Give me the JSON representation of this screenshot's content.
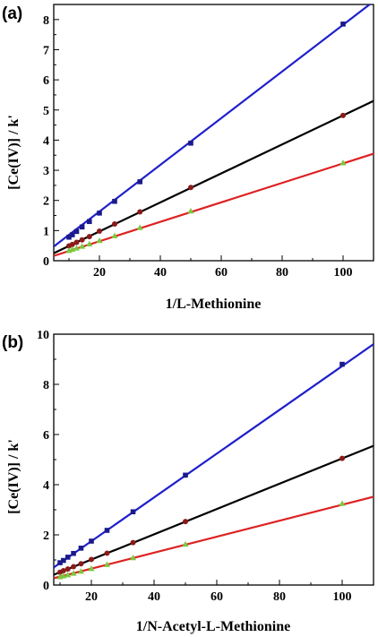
{
  "chart_data": [
    {
      "panel_label": "(a)",
      "type": "scatter",
      "xlabel": "1/L-Methionine",
      "ylabel": "[Ce(IV)] / k'",
      "xlim": [
        5,
        110
      ],
      "ylim": [
        0,
        8.5
      ],
      "xticks": [
        20,
        40,
        60,
        80,
        100
      ],
      "yticks": [
        0,
        1,
        2,
        3,
        4,
        5,
        6,
        7,
        8
      ],
      "grid": false,
      "series": [
        {
          "color": "#1f1fcc",
          "marker": "square",
          "marker_color": "#1a1a8c",
          "x": [
            100,
            50,
            33.3,
            25,
            20,
            16.7,
            14.3,
            12.5,
            11.1,
            10
          ],
          "y": [
            7.85,
            3.9,
            2.62,
            1.97,
            1.58,
            1.3,
            1.12,
            0.97,
            0.86,
            0.78
          ],
          "fit": [
            {
              "x": 5,
              "y": 0.47
            },
            {
              "x": 110,
              "y": 8.6
            }
          ]
        },
        {
          "color": "#000000",
          "marker": "circle",
          "marker_color": "#8b1a1a",
          "x": [
            100,
            50,
            33.3,
            25,
            20,
            16.7,
            14.3,
            12.5,
            11.1,
            10
          ],
          "y": [
            4.82,
            2.43,
            1.62,
            1.22,
            0.98,
            0.8,
            0.69,
            0.61,
            0.54,
            0.49
          ],
          "fit": [
            {
              "x": 5,
              "y": 0.25
            },
            {
              "x": 110,
              "y": 5.3
            }
          ]
        },
        {
          "color": "#dd2222",
          "marker": "triangle",
          "marker_color": "#7cc83c",
          "x": [
            100,
            50,
            33.3,
            25,
            20,
            16.7,
            14.3,
            12.5,
            11.1,
            10
          ],
          "y": [
            3.25,
            1.65,
            1.1,
            0.83,
            0.67,
            0.56,
            0.48,
            0.42,
            0.38,
            0.34
          ],
          "fit": [
            {
              "x": 5,
              "y": 0.16
            },
            {
              "x": 110,
              "y": 3.55
            }
          ]
        }
      ]
    },
    {
      "panel_label": "(b)",
      "type": "scatter",
      "xlabel": "1/N-Acetyl-L-Methionine",
      "ylabel": "[Ce(IV)] / k'",
      "xlim": [
        8,
        110
      ],
      "ylim": [
        0,
        10
      ],
      "xticks": [
        20,
        40,
        60,
        80,
        100
      ],
      "yticks": [
        0,
        2,
        4,
        6,
        8,
        10
      ],
      "grid": false,
      "series": [
        {
          "color": "#1f1fcc",
          "marker": "square",
          "marker_color": "#1a1a8c",
          "x": [
            100,
            50,
            33.3,
            25,
            20,
            16.7,
            14.3,
            12.5,
            11.1,
            10
          ],
          "y": [
            8.8,
            4.38,
            2.92,
            2.18,
            1.75,
            1.47,
            1.26,
            1.11,
            0.98,
            0.89
          ],
          "fit": [
            {
              "x": 8,
              "y": 0.7
            },
            {
              "x": 110,
              "y": 9.6
            }
          ]
        },
        {
          "color": "#000000",
          "marker": "circle",
          "marker_color": "#8b1a1a",
          "x": [
            100,
            50,
            33.3,
            25,
            20,
            16.7,
            14.3,
            12.5,
            11.1,
            10
          ],
          "y": [
            5.05,
            2.53,
            1.69,
            1.27,
            1.02,
            0.85,
            0.73,
            0.64,
            0.57,
            0.51
          ],
          "fit": [
            {
              "x": 8,
              "y": 0.41
            },
            {
              "x": 110,
              "y": 5.55
            }
          ]
        },
        {
          "color": "#dd2222",
          "marker": "triangle",
          "marker_color": "#7cc83c",
          "x": [
            100,
            50,
            33.3,
            25,
            20,
            16.7,
            14.3,
            12.5,
            11.1,
            10
          ],
          "y": [
            3.25,
            1.63,
            1.09,
            0.82,
            0.66,
            0.55,
            0.47,
            0.41,
            0.37,
            0.33
          ],
          "fit": [
            {
              "x": 8,
              "y": 0.27
            },
            {
              "x": 110,
              "y": 3.52
            }
          ]
        }
      ]
    }
  ]
}
